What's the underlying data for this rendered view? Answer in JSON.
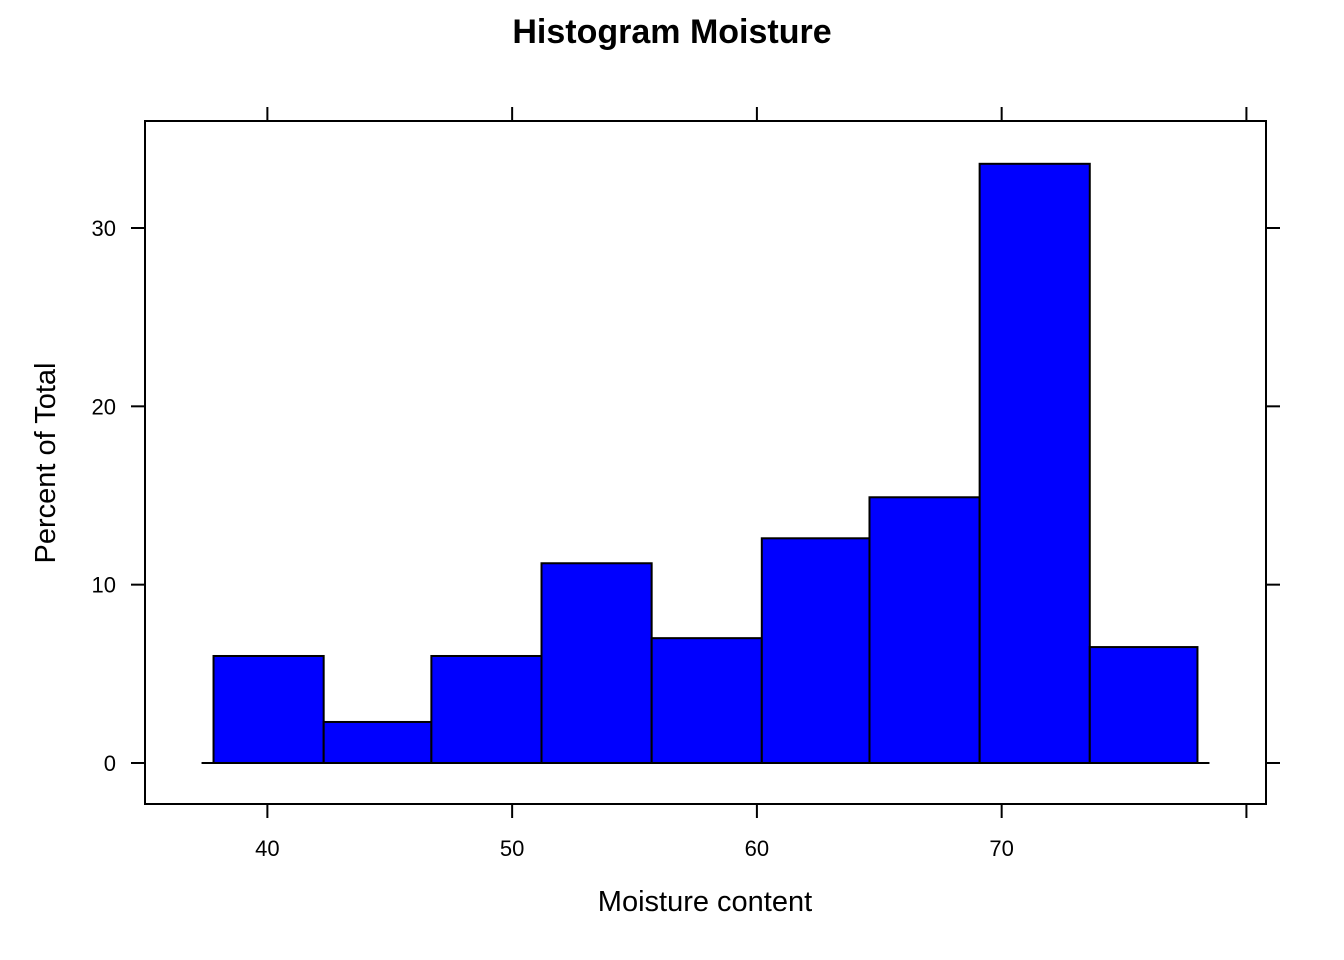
{
  "chart_data": {
    "type": "bar",
    "title": "Histogram Moisture",
    "xlabel": "Moisture content",
    "ylabel": "Percent of Total",
    "bar_color": "#0000ff",
    "x_ticks": [
      40,
      50,
      60,
      70,
      80
    ],
    "x_tick_labels": [
      "40",
      "50",
      "60",
      "70",
      ""
    ],
    "y_ticks": [
      0,
      10,
      20,
      30
    ],
    "y_tick_labels": [
      "0",
      "10",
      "20",
      "30"
    ],
    "xlim": [
      35.0,
      80.8
    ],
    "ylim": [
      -2.3,
      36.0
    ],
    "bins": [
      {
        "x0": 37.8,
        "x1": 42.3,
        "value": 6.0
      },
      {
        "x0": 42.3,
        "x1": 46.7,
        "value": 2.3
      },
      {
        "x0": 46.7,
        "x1": 51.2,
        "value": 6.0
      },
      {
        "x0": 51.2,
        "x1": 55.7,
        "value": 11.2
      },
      {
        "x0": 55.7,
        "x1": 60.2,
        "value": 7.0
      },
      {
        "x0": 60.2,
        "x1": 64.6,
        "value": 12.6
      },
      {
        "x0": 64.6,
        "x1": 69.1,
        "value": 14.9
      },
      {
        "x0": 69.1,
        "x1": 73.6,
        "value": 33.6
      },
      {
        "x0": 73.6,
        "x1": 78.0,
        "value": 6.5
      }
    ],
    "grid": false
  }
}
